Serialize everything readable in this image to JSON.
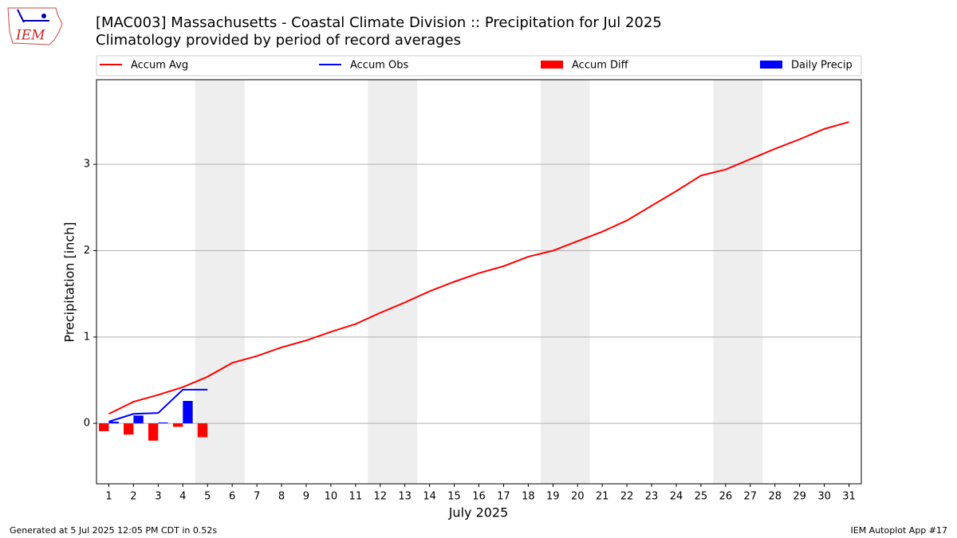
{
  "header": {
    "title": "[MAC003] Massachusetts - Coastal Climate Division :: Precipitation for Jul 2025",
    "subtitle": "Climatology provided by period of record averages",
    "logo_text": "IEM"
  },
  "chart_data": {
    "type": "combo",
    "x": [
      1,
      2,
      3,
      4,
      5,
      6,
      7,
      8,
      9,
      10,
      11,
      12,
      13,
      14,
      15,
      16,
      17,
      18,
      19,
      20,
      21,
      22,
      23,
      24,
      25,
      26,
      27,
      28,
      29,
      30,
      31
    ],
    "xlabel": "July 2025",
    "ylabel": "Precipitation [inch]",
    "xlim": [
      0.5,
      31.5
    ],
    "ylim": [
      -0.7,
      3.98
    ],
    "xticks": [
      1,
      2,
      3,
      4,
      5,
      6,
      7,
      8,
      9,
      10,
      11,
      12,
      13,
      14,
      15,
      16,
      17,
      18,
      19,
      20,
      21,
      22,
      23,
      24,
      25,
      26,
      27,
      28,
      29,
      30,
      31
    ],
    "yticks": [
      0,
      1,
      2,
      3
    ],
    "grid": "y",
    "shaded_spans": [
      [
        4.5,
        6.5
      ],
      [
        11.5,
        13.5
      ],
      [
        18.5,
        20.5
      ],
      [
        25.5,
        27.5
      ]
    ],
    "shade_color": "#eeeeee",
    "legend": "top",
    "series": [
      {
        "name": "Accum Avg",
        "kind": "line",
        "color": "#ff0000",
        "values": [
          0.11,
          0.25,
          0.33,
          0.42,
          0.54,
          0.7,
          0.78,
          0.88,
          0.96,
          1.06,
          1.15,
          1.28,
          1.4,
          1.53,
          1.64,
          1.74,
          1.82,
          1.93,
          2.0,
          2.11,
          2.22,
          2.35,
          2.52,
          2.69,
          2.87,
          2.94,
          3.06,
          3.18,
          3.29,
          3.41,
          3.49
        ]
      },
      {
        "name": "Accum Obs",
        "kind": "line",
        "color": "#0000ff",
        "values": [
          0.02,
          0.11,
          0.12,
          0.39,
          0.39,
          null,
          null,
          null,
          null,
          null,
          null,
          null,
          null,
          null,
          null,
          null,
          null,
          null,
          null,
          null,
          null,
          null,
          null,
          null,
          null,
          null,
          null,
          null,
          null,
          null,
          null
        ]
      },
      {
        "name": "Accum Diff",
        "kind": "bar",
        "color": "#ff0000",
        "values": [
          -0.09,
          -0.13,
          -0.2,
          -0.04,
          -0.16,
          null,
          null,
          null,
          null,
          null,
          null,
          null,
          null,
          null,
          null,
          null,
          null,
          null,
          null,
          null,
          null,
          null,
          null,
          null,
          null,
          null,
          null,
          null,
          null,
          null,
          null
        ]
      },
      {
        "name": "Daily Precip",
        "kind": "bar",
        "color": "#0000ff",
        "values": [
          0.02,
          0.09,
          0.01,
          0.26,
          0,
          null,
          null,
          null,
          null,
          null,
          null,
          null,
          null,
          null,
          null,
          null,
          null,
          null,
          null,
          null,
          null,
          null,
          null,
          null,
          null,
          null,
          null,
          null,
          null,
          null,
          null
        ]
      }
    ]
  },
  "footer": {
    "left": "Generated at 5 Jul 2025 12:05 PM CDT in 0.52s",
    "right": "IEM Autoplot App #17"
  }
}
